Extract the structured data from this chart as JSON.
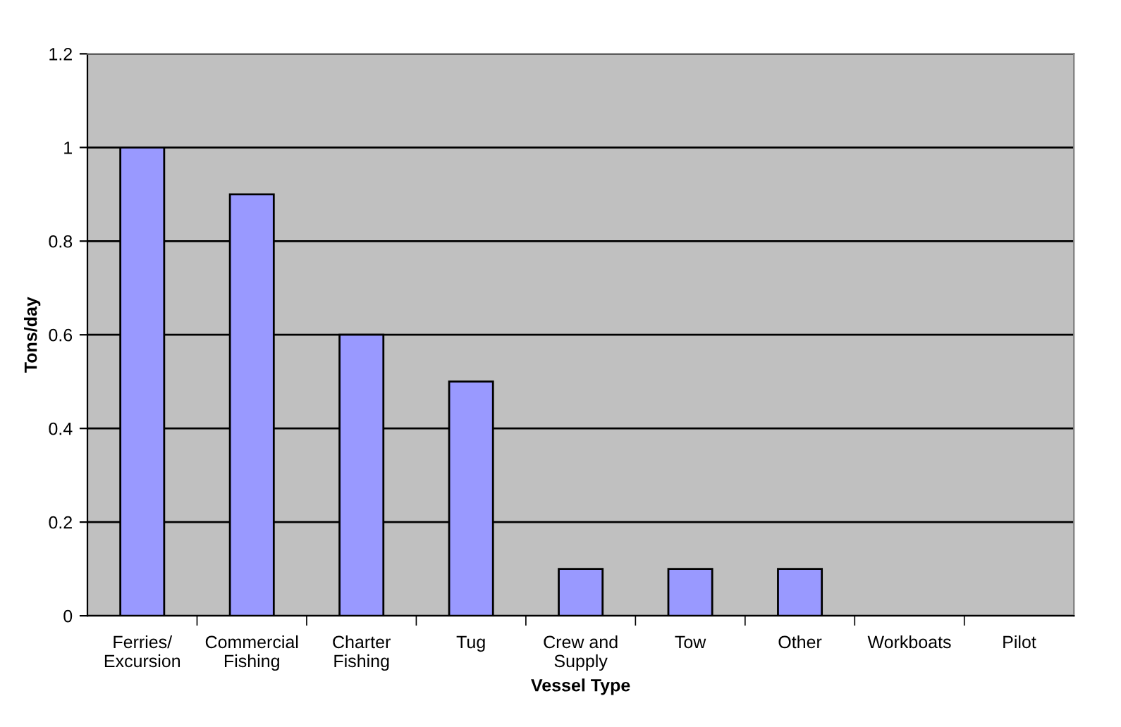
{
  "chart_data": {
    "type": "bar",
    "xlabel": "Vessel Type",
    "ylabel": "Tons/day",
    "categories": [
      "Ferries/\nExcursion",
      "Commercial\nFishing",
      "Charter\nFishing",
      "Tug",
      "Crew and\nSupply",
      "Tow",
      "Other",
      "Workboats",
      "Pilot"
    ],
    "values": [
      1,
      0.9,
      0.6,
      0.5,
      0.1,
      0.1,
      0.1,
      0,
      0
    ],
    "color": "#9999ff",
    "ylim": [
      0,
      1.2
    ],
    "yticks": [
      0,
      0.2,
      0.4,
      0.6,
      0.8,
      1,
      1.2
    ],
    "grid": "y"
  }
}
